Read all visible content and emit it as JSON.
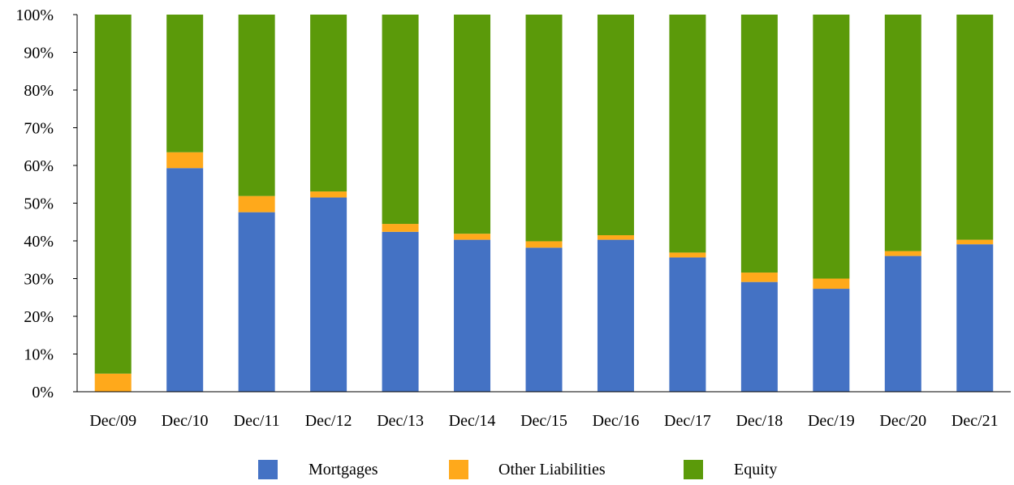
{
  "chart_data": {
    "type": "bar",
    "stacked": true,
    "percent_stacked": true,
    "title": "",
    "xlabel": "",
    "ylabel": "",
    "ylim": [
      0,
      100
    ],
    "y_ticks": [
      "0%",
      "10%",
      "20%",
      "30%",
      "40%",
      "50%",
      "60%",
      "70%",
      "80%",
      "90%",
      "100%"
    ],
    "categories": [
      "Dec/09",
      "Dec/10",
      "Dec/11",
      "Dec/12",
      "Dec/13",
      "Dec/14",
      "Dec/15",
      "Dec/16",
      "Dec/17",
      "Dec/18",
      "Dec/19",
      "Dec/20",
      "Dec/21"
    ],
    "series": [
      {
        "name": "Mortgages",
        "color": "#4472C4",
        "values": [
          0,
          59.3,
          47.6,
          51.5,
          42.4,
          40.3,
          38.2,
          40.3,
          35.6,
          29.1,
          27.3,
          36.0,
          39.1
        ]
      },
      {
        "name": "Other Liabilities",
        "color": "#FFA91B",
        "values": [
          4.8,
          4.2,
          4.3,
          1.6,
          2.1,
          1.6,
          1.7,
          1.2,
          1.3,
          2.5,
          2.7,
          1.3,
          1.2
        ]
      },
      {
        "name": "Equity",
        "color": "#5B9A0A",
        "values": [
          95.2,
          36.5,
          48.1,
          46.9,
          55.5,
          58.1,
          60.1,
          58.5,
          63.1,
          68.4,
          70.0,
          62.7,
          59.7
        ]
      }
    ],
    "grid": false,
    "legend_position": "bottom"
  }
}
